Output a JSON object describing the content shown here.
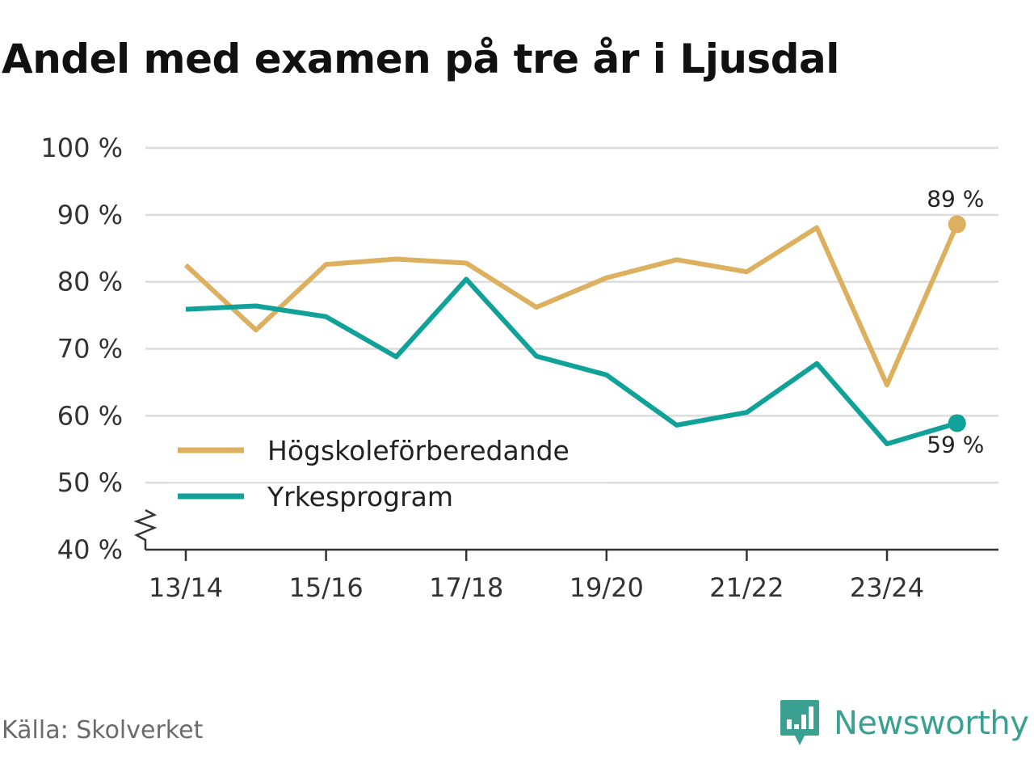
{
  "title": "Andel med examen på tre år i Ljusdal",
  "source": "Källa: Skolverket",
  "brand": {
    "name": "Newsworthy",
    "icon": "newsworthy-logo-icon",
    "color": "#3aa192"
  },
  "chart_data": {
    "type": "line",
    "title": "Andel med examen på tre år i Ljusdal",
    "xlabel": "",
    "ylabel": "",
    "x": [
      "13/14",
      "14/15",
      "15/16",
      "16/17",
      "17/18",
      "18/19",
      "19/20",
      "20/21",
      "21/22",
      "22/23",
      "23/24",
      "24/25"
    ],
    "x_tick_labels": [
      "13/14",
      "15/16",
      "17/18",
      "19/20",
      "21/22",
      "23/24"
    ],
    "ylim": [
      40,
      100
    ],
    "y_ticks": [
      40,
      50,
      60,
      70,
      80,
      90,
      100
    ],
    "y_tick_labels": [
      "40 %",
      "50 %",
      "60 %",
      "70 %",
      "80 %",
      "90 %",
      "100 %"
    ],
    "axis_break": true,
    "grid": true,
    "legend_position": "lower-left",
    "series": [
      {
        "name": "Högskoleförberedande",
        "color": "#dcb05e",
        "values": [
          82.5,
          72.8,
          82.6,
          83.4,
          82.8,
          76.2,
          80.6,
          83.3,
          81.5,
          88.1,
          64.6,
          88.6
        ],
        "end_label": "89 %"
      },
      {
        "name": "Yrkesprogram",
        "color": "#10a198",
        "values": [
          75.9,
          76.4,
          74.8,
          68.8,
          80.4,
          68.9,
          66.1,
          58.6,
          60.5,
          67.8,
          55.8,
          58.9
        ],
        "end_label": "59 %"
      }
    ]
  }
}
